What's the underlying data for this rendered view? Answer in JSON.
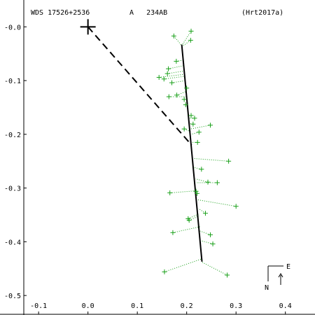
{
  "chart_data": {
    "type": "scatter",
    "header": {
      "left": "WDS 17526+2536",
      "middle": "A   234AB",
      "right": "(Hrt2017a)"
    },
    "xlim": [
      -0.13,
      0.46
    ],
    "ylim": [
      0.05,
      -0.535
    ],
    "x_ticks": [
      -0.1,
      0.0,
      0.1,
      0.2,
      0.3,
      0.4
    ],
    "x_tick_labels": [
      "-0.1",
      "0.0",
      "0.1",
      "0.2",
      "0.3",
      "0.4"
    ],
    "y_ticks": [
      0.0,
      -0.1,
      -0.2,
      -0.3,
      -0.4,
      -0.5
    ],
    "y_tick_labels": [
      "-0.0",
      "-0.1",
      "-0.2",
      "-0.3",
      "-0.4",
      "-0.5"
    ],
    "primary": {
      "x": 0.0,
      "y": 0.0
    },
    "orbit_line": {
      "x1": 0.19,
      "y1": -0.033,
      "x2": 0.231,
      "y2": -0.437
    },
    "reference_line": {
      "x1": 0.0,
      "y1": 0.0,
      "x2": 0.21,
      "y2": -0.22
    },
    "observations": [
      {
        "x": 0.174,
        "y": -0.017,
        "fx": 0.19,
        "fy": -0.035
      },
      {
        "x": 0.209,
        "y": -0.008,
        "fx": 0.19,
        "fy": -0.035
      },
      {
        "x": 0.208,
        "y": -0.025,
        "fx": 0.19,
        "fy": -0.037
      },
      {
        "x": 0.179,
        "y": -0.064,
        "fx": 0.193,
        "fy": -0.062
      },
      {
        "x": 0.163,
        "y": -0.078,
        "fx": 0.195,
        "fy": -0.072
      },
      {
        "x": 0.161,
        "y": -0.087,
        "fx": 0.196,
        "fy": -0.082
      },
      {
        "x": 0.144,
        "y": -0.094,
        "fx": 0.197,
        "fy": -0.088
      },
      {
        "x": 0.154,
        "y": -0.097,
        "fx": 0.197,
        "fy": -0.092
      },
      {
        "x": 0.17,
        "y": -0.104,
        "fx": 0.198,
        "fy": -0.1
      },
      {
        "x": 0.2,
        "y": -0.114,
        "fx": 0.199,
        "fy": -0.11
      },
      {
        "x": 0.18,
        "y": -0.127,
        "fx": 0.2,
        "fy": -0.12
      },
      {
        "x": 0.164,
        "y": -0.13,
        "fx": 0.201,
        "fy": -0.13
      },
      {
        "x": 0.195,
        "y": -0.135,
        "fx": 0.202,
        "fy": -0.135
      },
      {
        "x": 0.198,
        "y": -0.145,
        "fx": 0.203,
        "fy": -0.148
      },
      {
        "x": 0.209,
        "y": -0.165,
        "fx": 0.205,
        "fy": -0.165
      },
      {
        "x": 0.216,
        "y": -0.17,
        "fx": 0.206,
        "fy": -0.17
      },
      {
        "x": 0.213,
        "y": -0.181,
        "fx": 0.207,
        "fy": -0.18
      },
      {
        "x": 0.248,
        "y": -0.183,
        "fx": 0.208,
        "fy": -0.19
      },
      {
        "x": 0.195,
        "y": -0.19,
        "fx": 0.208,
        "fy": -0.195
      },
      {
        "x": 0.225,
        "y": -0.196,
        "fx": 0.209,
        "fy": -0.2
      },
      {
        "x": 0.222,
        "y": -0.215,
        "fx": 0.211,
        "fy": -0.215
      },
      {
        "x": 0.285,
        "y": -0.25,
        "fx": 0.214,
        "fy": -0.245
      },
      {
        "x": 0.23,
        "y": -0.265,
        "fx": 0.216,
        "fy": -0.262
      },
      {
        "x": 0.243,
        "y": -0.289,
        "fx": 0.218,
        "fy": -0.283
      },
      {
        "x": 0.262,
        "y": -0.29,
        "fx": 0.219,
        "fy": -0.29
      },
      {
        "x": 0.166,
        "y": -0.309,
        "fx": 0.221,
        "fy": -0.305
      },
      {
        "x": 0.219,
        "y": -0.306,
        "fx": 0.22,
        "fy": -0.305
      },
      {
        "x": 0.221,
        "y": -0.31,
        "fx": 0.221,
        "fy": -0.31
      },
      {
        "x": 0.3,
        "y": -0.334,
        "fx": 0.223,
        "fy": -0.322
      },
      {
        "x": 0.238,
        "y": -0.347,
        "fx": 0.224,
        "fy": -0.338
      },
      {
        "x": 0.203,
        "y": -0.357,
        "fx": 0.225,
        "fy": -0.348
      },
      {
        "x": 0.205,
        "y": -0.36,
        "fx": 0.225,
        "fy": -0.352
      },
      {
        "x": 0.172,
        "y": -0.383,
        "fx": 0.227,
        "fy": -0.372
      },
      {
        "x": 0.248,
        "y": -0.387,
        "fx": 0.227,
        "fy": -0.38
      },
      {
        "x": 0.253,
        "y": -0.404,
        "fx": 0.229,
        "fy": -0.398
      },
      {
        "x": 0.155,
        "y": -0.456,
        "fx": 0.23,
        "fy": -0.432
      },
      {
        "x": 0.282,
        "y": -0.462,
        "fx": 0.231,
        "fy": -0.438
      }
    ],
    "compass": {
      "north_label": "N",
      "east_label": "E"
    },
    "colors": {
      "observation": "#1aa01a",
      "residual": "#1aa01a",
      "orbit": "#000000",
      "axis": "#000000"
    }
  }
}
